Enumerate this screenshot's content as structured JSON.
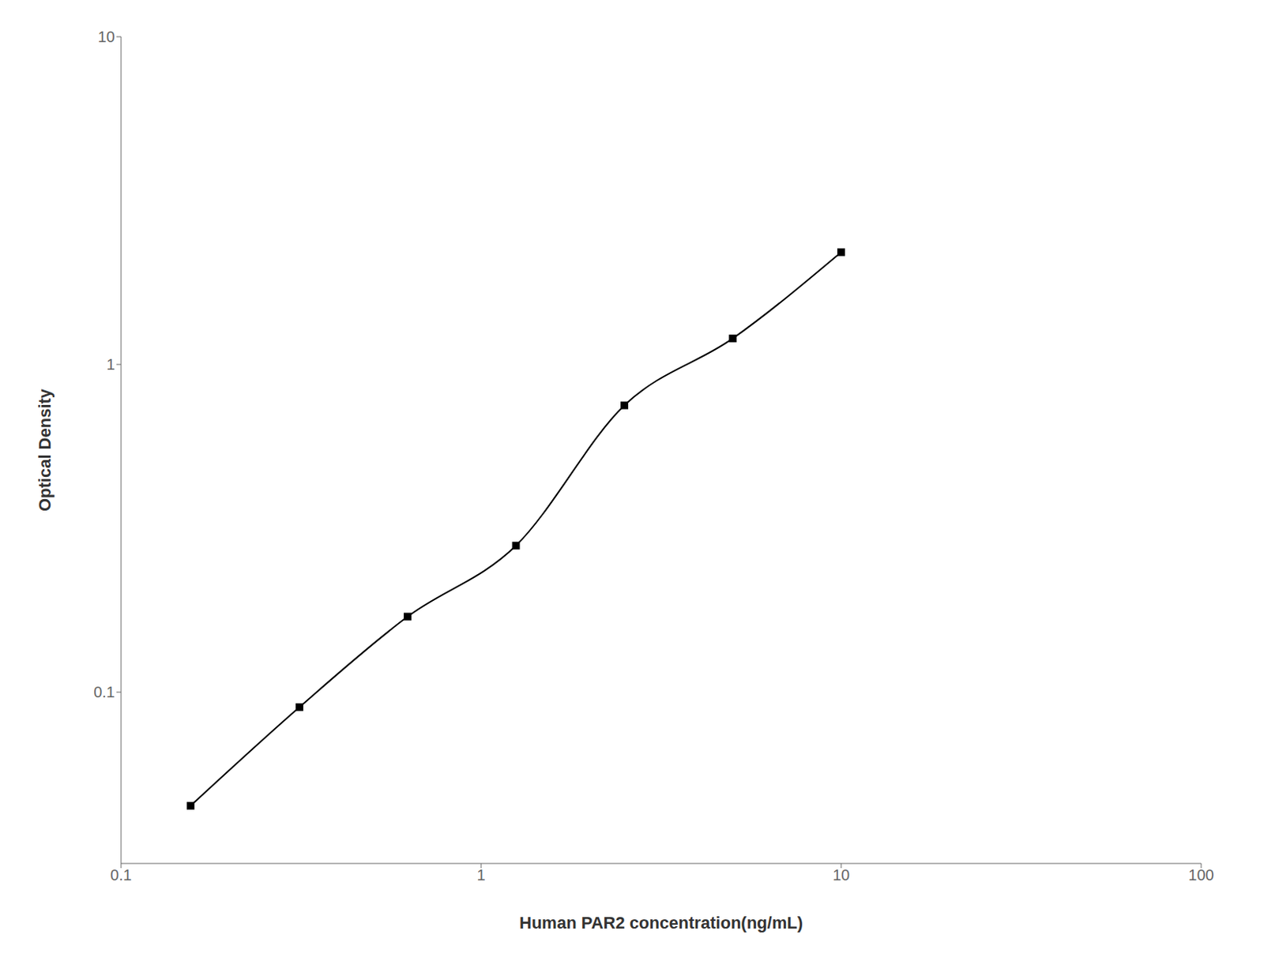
{
  "chart_data": {
    "type": "line",
    "x": [
      0.156,
      0.313,
      0.625,
      1.25,
      2.5,
      5.0,
      10.0
    ],
    "values": [
      0.045,
      0.09,
      0.17,
      0.28,
      0.75,
      1.2,
      2.2
    ],
    "xlabel": "Human PAR2 concentration(ng/mL)",
    "ylabel": "Optical Density",
    "xlim": [
      0.1,
      100
    ],
    "ylim": [
      0.03,
      10
    ],
    "xticks": [
      0.1,
      1,
      10,
      100
    ],
    "yticks": [
      0.1,
      1,
      10
    ],
    "log": true,
    "grid": false,
    "color": "#000000",
    "marker": "square",
    "line_style": "solid"
  }
}
